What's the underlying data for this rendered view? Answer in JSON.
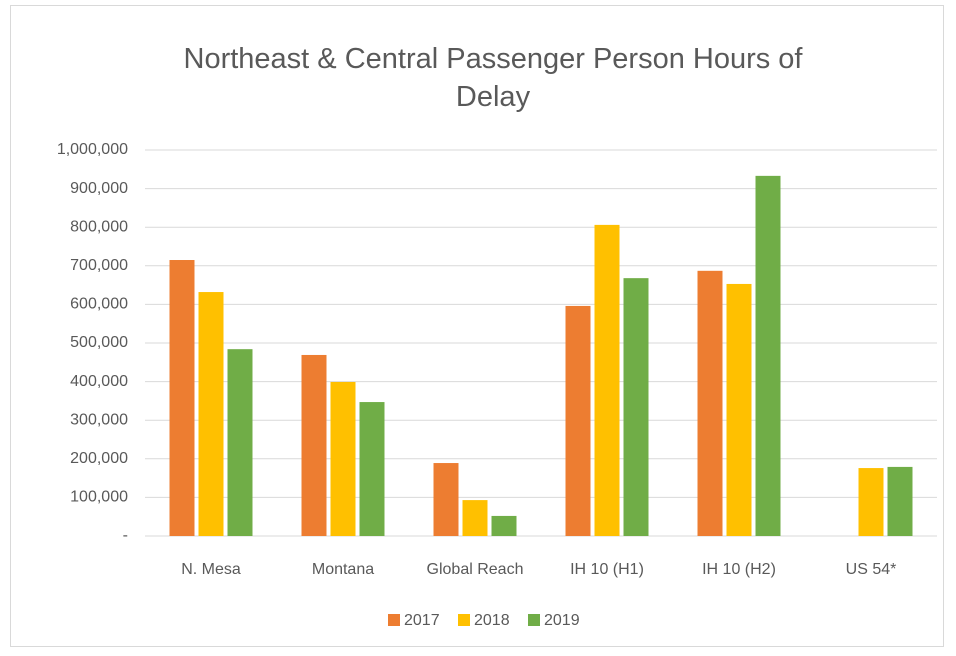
{
  "chart_data": {
    "type": "bar",
    "title": "Northeast & Central Passenger Person Hours of Delay",
    "categories": [
      "N. Mesa",
      "Montana",
      "Global Reach",
      "IH 10 (H1)",
      "IH 10 (H2)",
      "US 54*"
    ],
    "series": [
      {
        "name": "2017",
        "color": "#ed7d31",
        "values": [
          715000,
          469000,
          189000,
          596000,
          687000,
          null
        ]
      },
      {
        "name": "2018",
        "color": "#ffc000",
        "values": [
          632000,
          399000,
          93000,
          806000,
          653000,
          176000
        ]
      },
      {
        "name": "2019",
        "color": "#70ad47",
        "values": [
          484000,
          347000,
          52000,
          668000,
          933000,
          179000
        ]
      }
    ],
    "ylim": [
      0,
      1000000
    ],
    "yticks": [
      {
        "value": 0,
        "label": "-"
      },
      {
        "value": 100000,
        "label": "100,000"
      },
      {
        "value": 200000,
        "label": "200,000"
      },
      {
        "value": 300000,
        "label": "300,000"
      },
      {
        "value": 400000,
        "label": "400,000"
      },
      {
        "value": 500000,
        "label": "500,000"
      },
      {
        "value": 600000,
        "label": "600,000"
      },
      {
        "value": 700000,
        "label": "700,000"
      },
      {
        "value": 800000,
        "label": "800,000"
      },
      {
        "value": 900000,
        "label": "900,000"
      },
      {
        "value": 1000000,
        "label": "1,000,000"
      }
    ],
    "grid": true,
    "legend": "bottom"
  }
}
